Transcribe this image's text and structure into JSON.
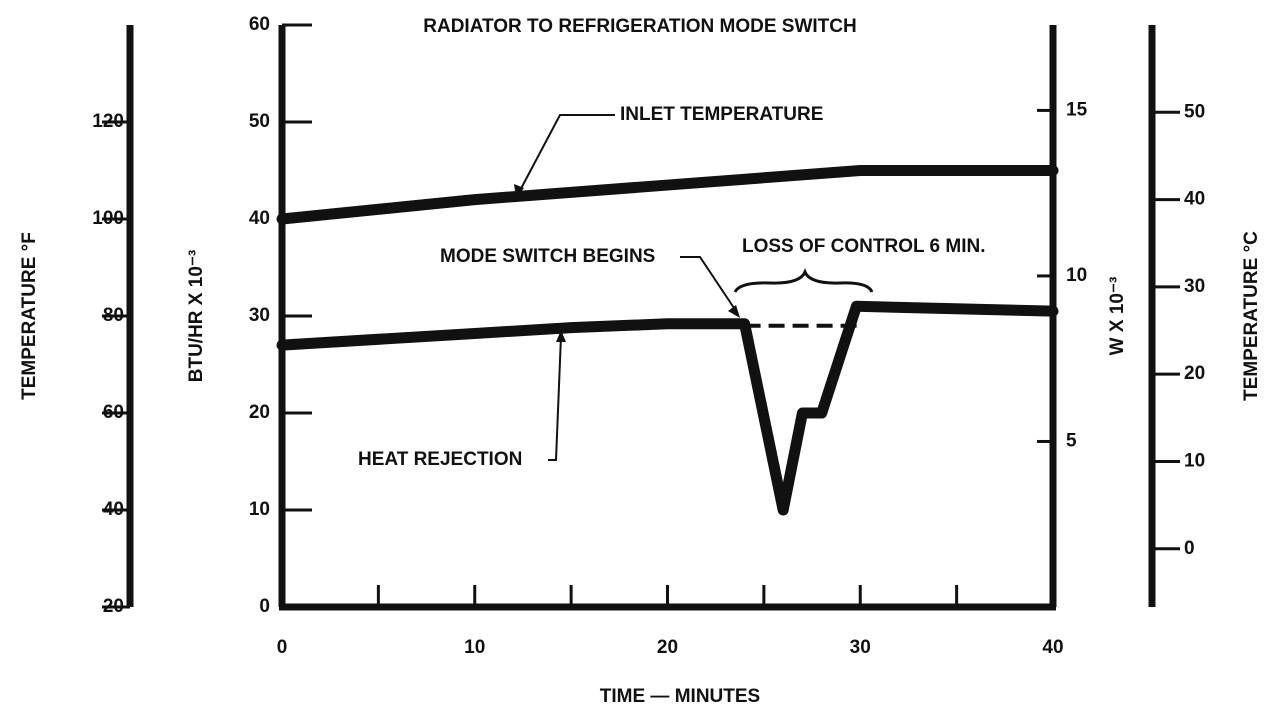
{
  "chart_data": {
    "type": "line",
    "title": "RADIATOR TO REFRIGERATION MODE SWITCH",
    "xlabel": "TIME — MINUTES",
    "xlim": [
      0,
      40
    ],
    "xticks": [
      0,
      10,
      20,
      30,
      40
    ],
    "xminorticks": [
      5,
      15,
      25,
      35
    ],
    "ylabel": "BTU/HR X 10⁻³",
    "ylim": [
      0,
      60
    ],
    "yticks": [
      0,
      10,
      20,
      30,
      40,
      50,
      60
    ],
    "y2label": "W X 10⁻³",
    "y2lim": [
      0,
      17.58
    ],
    "y2ticks": [
      5,
      10,
      15
    ],
    "y3label": "TEMPERATURE °F",
    "y3lim": [
      20,
      140
    ],
    "y3ticks": [
      20,
      40,
      60,
      80,
      100,
      120
    ],
    "y4label": "TEMPERATURE °C",
    "y4lim": [
      -6.67,
      60
    ],
    "y4ticks": [
      0,
      10,
      20,
      30,
      40,
      50
    ],
    "color": "#111111",
    "series": [
      {
        "name": "INLET TEMPERATURE",
        "axis": "y3",
        "x": [
          0,
          10,
          20,
          30,
          40
        ],
        "values": [
          100,
          104,
          107,
          110,
          110
        ]
      },
      {
        "name": "HEAT REJECTION",
        "axis": "y",
        "x": [
          0,
          10,
          15,
          20,
          24,
          26,
          27,
          28,
          29.8,
          40
        ],
        "values": [
          27,
          28.2,
          28.8,
          29.2,
          29.2,
          10,
          20,
          20,
          31,
          30.5
        ]
      },
      {
        "axis": "y",
        "dashed": true,
        "x": [
          24,
          30
        ],
        "values": [
          29,
          29
        ]
      }
    ],
    "annotations": [
      "MODE SWITCH BEGINS",
      "LOSS OF CONTROL  6 MIN."
    ]
  }
}
